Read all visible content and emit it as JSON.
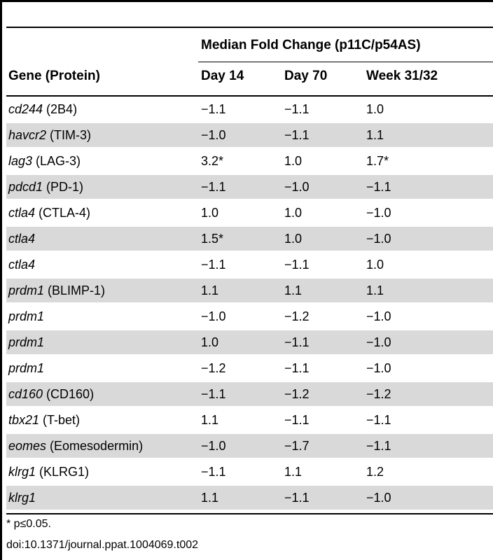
{
  "table": {
    "span_header": "Median Fold Change (p11C/p54AS)",
    "columns": [
      "Gene (Protein)",
      "Day 14",
      "Day 70",
      "Week 31/32"
    ],
    "rows": [
      {
        "gene": "cd244",
        "protein": " (2B4)",
        "day14": "−1.1",
        "day70": "−1.1",
        "week31_32": "1.0"
      },
      {
        "gene": "havcr2",
        "protein": " (TIM-3)",
        "day14": "−1.0",
        "day70": "−1.1",
        "week31_32": "1.1"
      },
      {
        "gene": "lag3",
        "protein": " (LAG-3)",
        "day14": "3.2*",
        "day70": "1.0",
        "week31_32": "1.7*"
      },
      {
        "gene": "pdcd1",
        "protein": " (PD-1)",
        "day14": "−1.1",
        "day70": "−1.0",
        "week31_32": "−1.1"
      },
      {
        "gene": "ctla4",
        "protein": " (CTLA-4)",
        "day14": "1.0",
        "day70": "1.0",
        "week31_32": "−1.0"
      },
      {
        "gene": "ctla4",
        "protein": "",
        "day14": "1.5*",
        "day70": "1.0",
        "week31_32": "−1.0"
      },
      {
        "gene": "ctla4",
        "protein": "",
        "day14": "−1.1",
        "day70": "−1.1",
        "week31_32": "1.0"
      },
      {
        "gene": "prdm1",
        "protein": " (BLIMP-1)",
        "day14": "1.1",
        "day70": "1.1",
        "week31_32": "1.1"
      },
      {
        "gene": "prdm1",
        "protein": "",
        "day14": "−1.0",
        "day70": "−1.2",
        "week31_32": "−1.0"
      },
      {
        "gene": "prdm1",
        "protein": "",
        "day14": "1.0",
        "day70": "−1.1",
        "week31_32": "−1.0"
      },
      {
        "gene": "prdm1",
        "protein": "",
        "day14": "−1.2",
        "day70": "−1.1",
        "week31_32": "−1.0"
      },
      {
        "gene": "cd160",
        "protein": " (CD160)",
        "day14": "−1.1",
        "day70": "−1.2",
        "week31_32": "−1.2"
      },
      {
        "gene": "tbx21",
        "protein": " (T-bet)",
        "day14": "1.1",
        "day70": "−1.1",
        "week31_32": "−1.1"
      },
      {
        "gene": "eomes",
        "protein": " (Eomesodermin)",
        "day14": "−1.0",
        "day70": "−1.7",
        "week31_32": "−1.1"
      },
      {
        "gene": "klrg1",
        "protein": " (KLRG1)",
        "day14": "−1.1",
        "day70": "1.1",
        "week31_32": "1.2"
      },
      {
        "gene": "klrg1",
        "protein": "",
        "day14": "1.1",
        "day70": "−1.1",
        "week31_32": "−1.0"
      }
    ]
  },
  "footnote": "* p≤0.05.",
  "doi": "doi:10.1371/journal.ppat.1004069.t002",
  "colors": {
    "row_shade": "#d9d9d9",
    "rule": "#000000"
  }
}
